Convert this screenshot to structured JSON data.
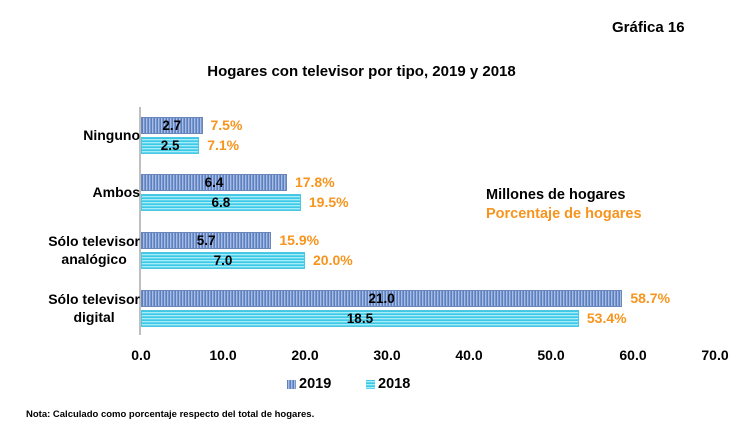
{
  "header": {
    "chart_number": "Gráfica 16"
  },
  "colors": {
    "series_2019": "#6f8fcf",
    "series_2018": "#5fd6ee",
    "percent_text": "#f7941d"
  },
  "legend_units": {
    "millions_label": "Millones de hogares",
    "percent_label": "Porcentaje de hogares"
  },
  "note": "Nota: Calculado como porcentaje respecto del total de hogares.",
  "chart_data": {
    "type": "bar",
    "orientation": "horizontal",
    "title": "Hogares con televisor por tipo, 2019 y 2018",
    "xlabel": "",
    "ylabel": "",
    "xlim": [
      0,
      70
    ],
    "x_ticks": [
      "0.0",
      "10.0",
      "20.0",
      "30.0",
      "40.0",
      "50.0",
      "60.0",
      "70.0"
    ],
    "grid": false,
    "legend_position": "bottom",
    "categories": [
      "Ninguno",
      "Ambos",
      "Sólo televisor analógico",
      "Sólo televisor digital"
    ],
    "category_lines": [
      [
        "Ninguno"
      ],
      [
        "Ambos"
      ],
      [
        "Sólo televisor",
        "analógico"
      ],
      [
        "Sólo televisor",
        "digital"
      ]
    ],
    "series": [
      {
        "name": "2019",
        "millions": [
          "2.7",
          "6.4",
          "5.7",
          "21.0"
        ],
        "percent": [
          7.5,
          17.8,
          15.9,
          58.7
        ],
        "percent_labels": [
          "7.5%",
          "17.8%",
          "15.9%",
          "58.7%"
        ]
      },
      {
        "name": "2018",
        "millions": [
          "2.5",
          "6.8",
          "7.0",
          "18.5"
        ],
        "percent": [
          7.1,
          19.5,
          20.0,
          53.4
        ],
        "percent_labels": [
          "7.1%",
          "19.5%",
          "20.0%",
          "53.4%"
        ]
      }
    ],
    "bar_length_encodes": "percent"
  }
}
